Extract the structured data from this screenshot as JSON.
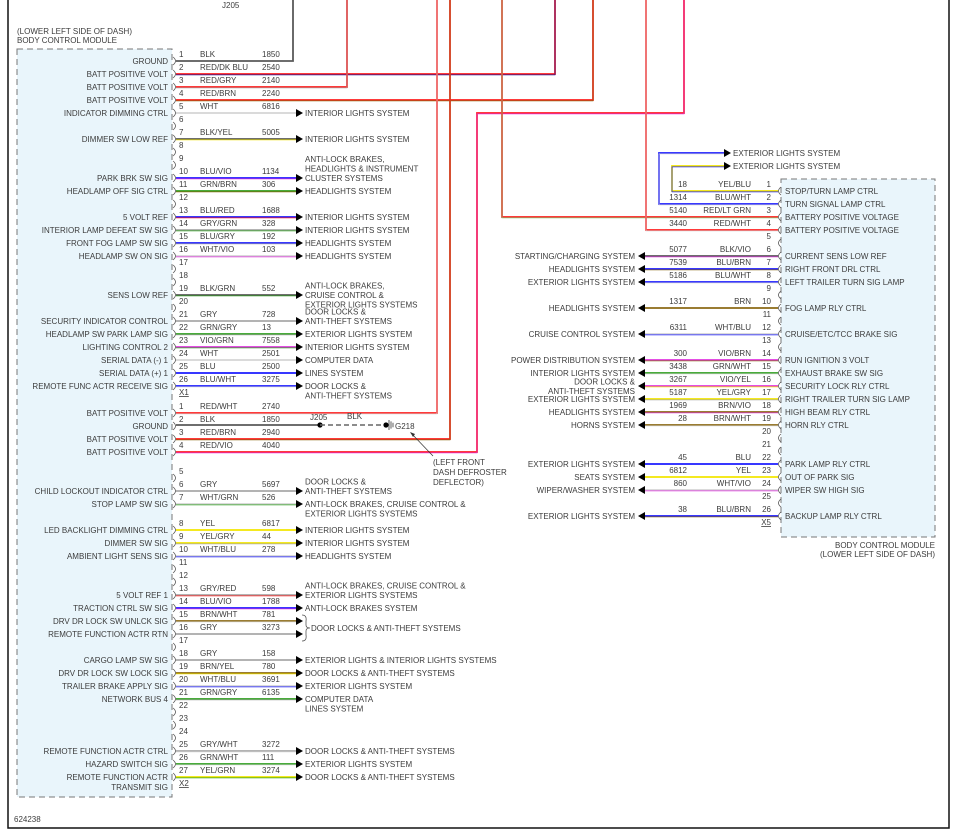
{
  "figure_id": "624238",
  "left_module": {
    "location": "(LOWER LEFT SIDE OF DASH)",
    "name": "BODY CONTROL MODULE"
  },
  "right_module": {
    "name": "BODY CONTROL MODULE",
    "location": "(LOWER LEFT SIDE OF DASH)"
  },
  "splice_top": "J205",
  "ground": {
    "splice": "J205",
    "wire_color": "BLK",
    "ground_id": "G218",
    "location": [
      "(LEFT FRONT",
      "DASH DEFROSTER",
      "DEFLECTOR)"
    ]
  },
  "top_arrows": [
    "EXTERIOR LIGHTS SYSTEM",
    "EXTERIOR LIGHTS SYSTEM"
  ],
  "brace_text": "DOOR LOCKS & ANTI-THEFT SYSTEMS",
  "wire_colors": {
    "BLK": "#5a5a5a",
    "RED": "#ff1e1e",
    "WHT": "#d4d4d4",
    "YEL": "#f2e600",
    "BLU": "#1c1cff",
    "GRN": "#2f9f1f",
    "BRN": "#8b6a14",
    "GRY": "#a8a8a8",
    "VIO": "#e034e0",
    "LT GRN": "#7fd37f",
    "DK BLU": "#1a1a9c"
  },
  "connectors": {
    "X1": {
      "name": "X1",
      "rows": [
        {
          "pin": "1",
          "color": "BLK",
          "circuit": "1850",
          "label": "GROUND"
        },
        {
          "pin": "2",
          "color": "RED/DK BLU",
          "circuit": "2540",
          "label": "BATT POSITIVE VOLT"
        },
        {
          "pin": "3",
          "color": "RED/GRY",
          "circuit": "2140",
          "label": "BATT POSITIVE VOLT"
        },
        {
          "pin": "4",
          "color": "RED/BRN",
          "circuit": "2240",
          "label": "BATT POSITIVE VOLT"
        },
        {
          "pin": "5",
          "color": "WHT",
          "circuit": "6816",
          "label": "INDICATOR DIMMING CTRL",
          "dest": [
            "INTERIOR LIGHTS SYSTEM"
          ]
        },
        {
          "pin": "6"
        },
        {
          "pin": "7",
          "color": "BLK/YEL",
          "circuit": "5005",
          "label": "DIMMER SW LOW REF",
          "dest": [
            "INTERIOR LIGHTS SYSTEM"
          ]
        },
        {
          "pin": "8"
        },
        {
          "pin": "9"
        },
        {
          "pin": "10",
          "color": "BLU/VIO",
          "circuit": "1134",
          "label": "PARK BRK SW SIG",
          "dest": [
            "ANTI-LOCK BRAKES,",
            "HEADLIGHTS & INSTRUMENT",
            "CLUSTER SYSTEMS"
          ]
        },
        {
          "pin": "11",
          "color": "GRN/BRN",
          "circuit": "306",
          "label": "HEADLAMP OFF SIG CTRL",
          "dest": [
            "HEADLIGHTS SYSTEM"
          ]
        },
        {
          "pin": "12"
        },
        {
          "pin": "13",
          "color": "BLU/RED",
          "circuit": "1688",
          "label": "5 VOLT REF",
          "dest": [
            "INTERIOR LIGHTS SYSTEM"
          ]
        },
        {
          "pin": "14",
          "color": "GRY/GRN",
          "circuit": "328",
          "label": "INTERIOR LAMP DEFEAT SW SIG",
          "dest": [
            "INTERIOR LIGHTS SYSTEM"
          ]
        },
        {
          "pin": "15",
          "color": "BLU/GRY",
          "circuit": "192",
          "label": "FRONT FOG LAMP SW SIG",
          "dest": [
            "HEADLIGHTS SYSTEM"
          ]
        },
        {
          "pin": "16",
          "color": "WHT/VIO",
          "circuit": "103",
          "label": "HEADLAMP SW ON SIG",
          "dest": [
            "HEADLIGHTS SYSTEM"
          ]
        },
        {
          "pin": "17"
        },
        {
          "pin": "18"
        },
        {
          "pin": "19",
          "color": "BLK/GRN",
          "circuit": "552",
          "label": "SENS LOW REF",
          "dest": [
            "ANTI-LOCK BRAKES,",
            "CRUISE CONTROL &",
            "EXTERIOR LIGHTS SYSTEMS"
          ]
        },
        {
          "pin": "20"
        },
        {
          "pin": "21",
          "color": "GRY",
          "circuit": "728",
          "label": "SECURITY INDICATOR CONTROL",
          "dest": [
            "DOOR LOCKS &",
            "ANTI-THEFT SYSTEMS"
          ]
        },
        {
          "pin": "22",
          "color": "GRN/GRY",
          "circuit": "13",
          "label": "HEADLAMP SW PARK LAMP SIG",
          "dest": [
            "EXTERIOR LIGHTS SYSTEM"
          ]
        },
        {
          "pin": "23",
          "color": "VIO/GRN",
          "circuit": "7558",
          "label": "LIGHTING CONTROL 2",
          "dest": [
            "INTERIOR LIGHTS SYSTEM"
          ]
        },
        {
          "pin": "24",
          "color": "WHT",
          "circuit": "2501",
          "label": "SERIAL DATA (-) 1",
          "dest": [
            "COMPUTER DATA"
          ]
        },
        {
          "pin": "25",
          "color": "BLU",
          "circuit": "2500",
          "label": "SERIAL DATA (+) 1",
          "dest": [
            "LINES SYSTEM"
          ]
        },
        {
          "pin": "26",
          "color": "BLU/WHT",
          "circuit": "3275",
          "label": "REMOTE FUNC ACTR RECEIVE SIG",
          "dest": [
            "DOOR LOCKS &",
            "ANTI-THEFT SYSTEMS"
          ]
        }
      ]
    },
    "X2": {
      "name": "X2",
      "rows": [
        {
          "pin": "1",
          "color": "RED/WHT",
          "circuit": "2740",
          "label": "BATT POSITIVE VOLT"
        },
        {
          "pin": "2",
          "color": "BLK",
          "circuit": "1850",
          "label": "GROUND"
        },
        {
          "pin": "3",
          "color": "RED/BRN",
          "circuit": "2940",
          "label": "BATT POSITIVE VOLT"
        },
        {
          "pin": "4",
          "color": "RED/VIO",
          "circuit": "4040",
          "label": "BATT POSITIVE VOLT"
        },
        {
          "pin": "5"
        },
        {
          "pin": "6",
          "color": "GRY",
          "circuit": "5697",
          "label": "CHILD LOCKOUT INDICATOR CTRL",
          "dest": [
            "DOOR LOCKS &",
            "ANTI-THEFT SYSTEMS"
          ]
        },
        {
          "pin": "7",
          "color": "WHT/GRN",
          "circuit": "526",
          "label": "STOP LAMP SW SIG",
          "dest": [
            "ANTI-LOCK BRAKES, CRUISE CONTROL &",
            "EXTERIOR LIGHTS SYSTEMS"
          ]
        },
        {
          "pin": "8",
          "color": "YEL",
          "circuit": "6817",
          "label": "LED BACKLIGHT DIMMING CTRL",
          "dest": [
            "INTERIOR LIGHTS SYSTEM"
          ]
        },
        {
          "pin": "9",
          "color": "YEL/GRY",
          "circuit": "44",
          "label": "DIMMER SW SIG",
          "dest": [
            "INTERIOR LIGHTS SYSTEM"
          ]
        },
        {
          "pin": "10",
          "color": "WHT/BLU",
          "circuit": "278",
          "label": "AMBIENT LIGHT SENS SIG",
          "dest": [
            "HEADLIGHTS SYSTEM"
          ]
        },
        {
          "pin": "11"
        },
        {
          "pin": "12"
        },
        {
          "pin": "13",
          "color": "GRY/RED",
          "circuit": "598",
          "label": "5 VOLT REF 1",
          "dest": [
            "ANTI-LOCK BRAKES, CRUISE CONTROL &",
            "EXTERIOR LIGHTS SYSTEMS"
          ]
        },
        {
          "pin": "14",
          "color": "BLU/VIO",
          "circuit": "1788",
          "label": "TRACTION CTRL SW SIG",
          "dest": [
            "ANTI-LOCK BRAKES SYSTEM"
          ]
        },
        {
          "pin": "15",
          "color": "BRN/WHT",
          "circuit": "781",
          "label": "DRV DR LOCK SW UNLCK SIG",
          "dest": []
        },
        {
          "pin": "16",
          "color": "GRY",
          "circuit": "3273",
          "label": "REMOTE FUNCTION ACTR RTN",
          "dest": []
        },
        {
          "pin": "17"
        },
        {
          "pin": "18",
          "color": "GRY",
          "circuit": "158",
          "label": "CARGO LAMP SW SIG",
          "dest": [
            "EXTERIOR LIGHTS & INTERIOR LIGHTS SYSTEMS"
          ]
        },
        {
          "pin": "19",
          "color": "BRN/YEL",
          "circuit": "780",
          "label": "DRV DR LOCK SW LOCK SIG",
          "dest": [
            "DOOR LOCKS & ANTI-THEFT SYSTEMS"
          ]
        },
        {
          "pin": "20",
          "color": "WHT/BLU",
          "circuit": "3691",
          "label": "TRAILER BRAKE APPLY SIG",
          "dest": [
            "EXTERIOR LIGHTS SYSTEM"
          ]
        },
        {
          "pin": "21",
          "color": "GRN/GRY",
          "circuit": "6135",
          "label": "NETWORK BUS 4",
          "dest": [
            "COMPUTER DATA",
            "LINES SYSTEM"
          ]
        },
        {
          "pin": "22"
        },
        {
          "pin": "23"
        },
        {
          "pin": "24"
        },
        {
          "pin": "25",
          "color": "GRY/WHT",
          "circuit": "3272",
          "label": "REMOTE FUNCTION ACTR CTRL",
          "dest": [
            "DOOR LOCKS & ANTI-THEFT SYSTEMS"
          ]
        },
        {
          "pin": "26",
          "color": "GRN/WHT",
          "circuit": "111",
          "label": "HAZARD SWITCH SIG",
          "dest": [
            "EXTERIOR LIGHTS SYSTEM"
          ]
        },
        {
          "pin": "27",
          "color": "YEL/GRN",
          "circuit": "3274",
          "label": [
            "REMOTE FUNCTION ACTR",
            "TRANSMIT SIG"
          ],
          "dest": [
            "DOOR LOCKS & ANTI-THEFT SYSTEMS"
          ]
        }
      ]
    },
    "X5": {
      "name": "X5",
      "rows": [
        {
          "pin": "1",
          "color": "YEL/BLU",
          "circuit": "18",
          "label": "STOP/TURN LAMP CTRL"
        },
        {
          "pin": "2",
          "color": "BLU/WHT",
          "circuit": "1314",
          "label": "TURN SIGNAL LAMP CTRL"
        },
        {
          "pin": "3",
          "color": "RED/LT GRN",
          "circuit": "5140",
          "label": "BATTERY POSITIVE VOLTAGE"
        },
        {
          "pin": "4",
          "color": "RED/WHT",
          "circuit": "3440",
          "label": "BATTERY POSITIVE VOLTAGE"
        },
        {
          "pin": "5"
        },
        {
          "pin": "6",
          "color": "BLK/VIO",
          "circuit": "5077",
          "label": "CURRENT SENS LOW REF",
          "dest": [
            "STARTING/CHARGING SYSTEM"
          ]
        },
        {
          "pin": "7",
          "color": "BLU/BRN",
          "circuit": "7539",
          "label": "RIGHT FRONT DRL CTRL",
          "dest": [
            "HEADLIGHTS SYSTEM"
          ]
        },
        {
          "pin": "8",
          "color": "BLU/WHT",
          "circuit": "5186",
          "label": "LEFT TRAILER TURN SIG LAMP",
          "dest": [
            "EXTERIOR LIGHTS SYSTEM"
          ]
        },
        {
          "pin": "9"
        },
        {
          "pin": "10",
          "color": "BRN",
          "circuit": "1317",
          "label": "FOG LAMP RLY CTRL",
          "dest": [
            "HEADLIGHTS SYSTEM"
          ]
        },
        {
          "pin": "11"
        },
        {
          "pin": "12",
          "color": "WHT/BLU",
          "circuit": "6311",
          "label": "CRUISE/ETC/TCC BRAKE SIG",
          "dest": [
            "CRUISE CONTROL SYSTEM"
          ]
        },
        {
          "pin": "13"
        },
        {
          "pin": "14",
          "color": "VIO/BRN",
          "circuit": "300",
          "label": "RUN IGNITION 3 VOLT",
          "dest": [
            "POWER DISTRIBUTION SYSTEM"
          ]
        },
        {
          "pin": "15",
          "color": "GRN/WHT",
          "circuit": "3438",
          "label": "EXHAUST BRAKE SW SIG",
          "dest": [
            "INTERIOR LIGHTS SYSTEM"
          ]
        },
        {
          "pin": "16",
          "color": "VIO/YEL",
          "circuit": "3267",
          "label": "SECURITY LOCK RLY CTRL",
          "dest": [
            "DOOR LOCKS &",
            "ANTI-THEFT SYSTEMS"
          ]
        },
        {
          "pin": "17",
          "color": "YEL/GRY",
          "circuit": "5187",
          "label": "RIGHT TRAILER TURN SIG LAMP",
          "dest": [
            "EXTERIOR LIGHTS SYSTEM"
          ]
        },
        {
          "pin": "18",
          "color": "BRN/VIO",
          "circuit": "1969",
          "label": "HIGH BEAM RLY CTRL",
          "dest": [
            "HEADLIGHTS SYSTEM"
          ]
        },
        {
          "pin": "19",
          "color": "BRN/WHT",
          "circuit": "28",
          "label": "HORN RLY CTRL",
          "dest": [
            "HORNS SYSTEM"
          ]
        },
        {
          "pin": "20"
        },
        {
          "pin": "21"
        },
        {
          "pin": "22",
          "color": "BLU",
          "circuit": "45",
          "label": "PARK LAMP RLY CTRL",
          "dest": [
            "EXTERIOR LIGHTS SYSTEM"
          ]
        },
        {
          "pin": "23",
          "color": "YEL",
          "circuit": "6812",
          "label": "OUT OF PARK SIG",
          "dest": [
            "SEATS SYSTEM"
          ]
        },
        {
          "pin": "24",
          "color": "WHT/VIO",
          "circuit": "860",
          "label": "WIPER SW HIGH SIG",
          "dest": [
            "WIPER/WASHER SYSTEM"
          ]
        },
        {
          "pin": "25"
        },
        {
          "pin": "26",
          "color": "BLU/BRN",
          "circuit": "38",
          "label": "BACKUP LAMP RLY CTRL",
          "dest": [
            "EXTERIOR LIGHTS SYSTEM"
          ]
        }
      ]
    }
  }
}
